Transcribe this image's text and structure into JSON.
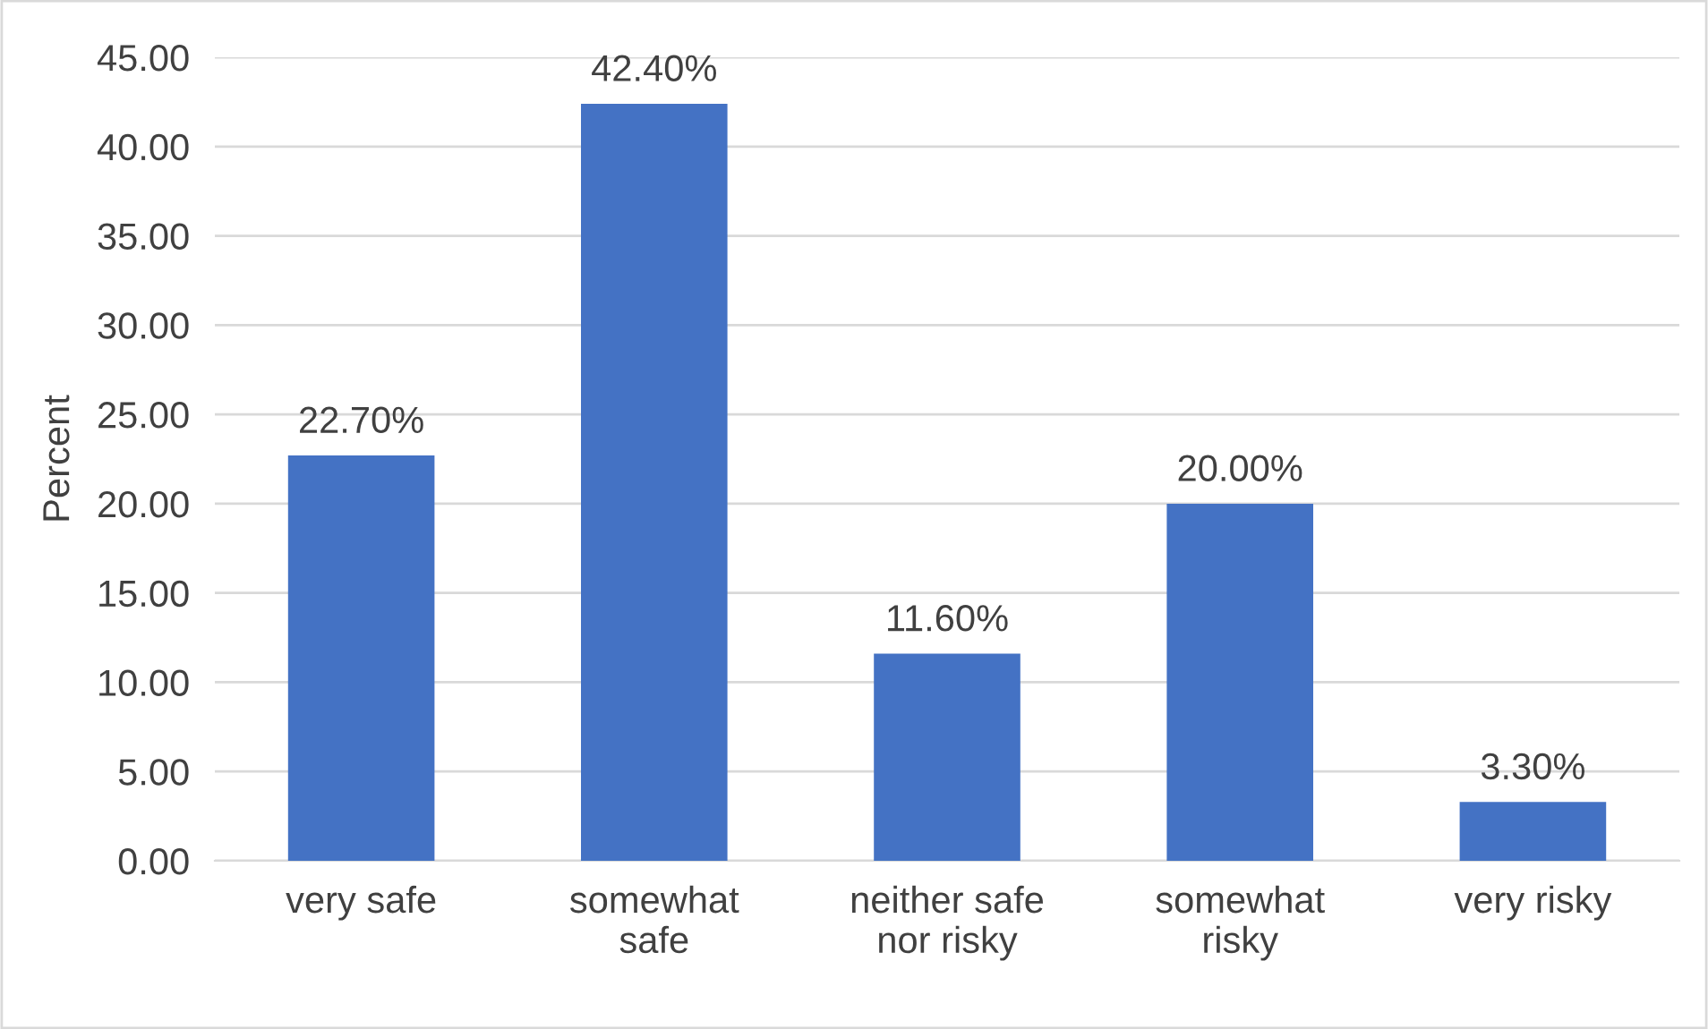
{
  "chart_data": {
    "type": "bar",
    "ylabel": "Percent",
    "categories": [
      "very safe",
      "somewhat\nsafe",
      "neither safe\nnor risky",
      "somewhat\nrisky",
      "very risky"
    ],
    "values": [
      22.7,
      42.4,
      11.6,
      20.0,
      3.3
    ],
    "value_labels": [
      "22.70%",
      "42.40%",
      "11.60%",
      "20.00%",
      "3.30%"
    ],
    "color": "#4472c4",
    "ylim": [
      0,
      45
    ],
    "yticks": [
      {
        "value": 0,
        "label": "0.00"
      },
      {
        "value": 5,
        "label": "5.00"
      },
      {
        "value": 10,
        "label": "10.00"
      },
      {
        "value": 15,
        "label": "15.00"
      },
      {
        "value": 20,
        "label": "20.00"
      },
      {
        "value": 25,
        "label": "25.00"
      },
      {
        "value": 30,
        "label": "30.00"
      },
      {
        "value": 35,
        "label": "35.00"
      },
      {
        "value": 40,
        "label": "40.00"
      },
      {
        "value": 45,
        "label": "45.00"
      }
    ],
    "grid": "y",
    "legend": false
  }
}
